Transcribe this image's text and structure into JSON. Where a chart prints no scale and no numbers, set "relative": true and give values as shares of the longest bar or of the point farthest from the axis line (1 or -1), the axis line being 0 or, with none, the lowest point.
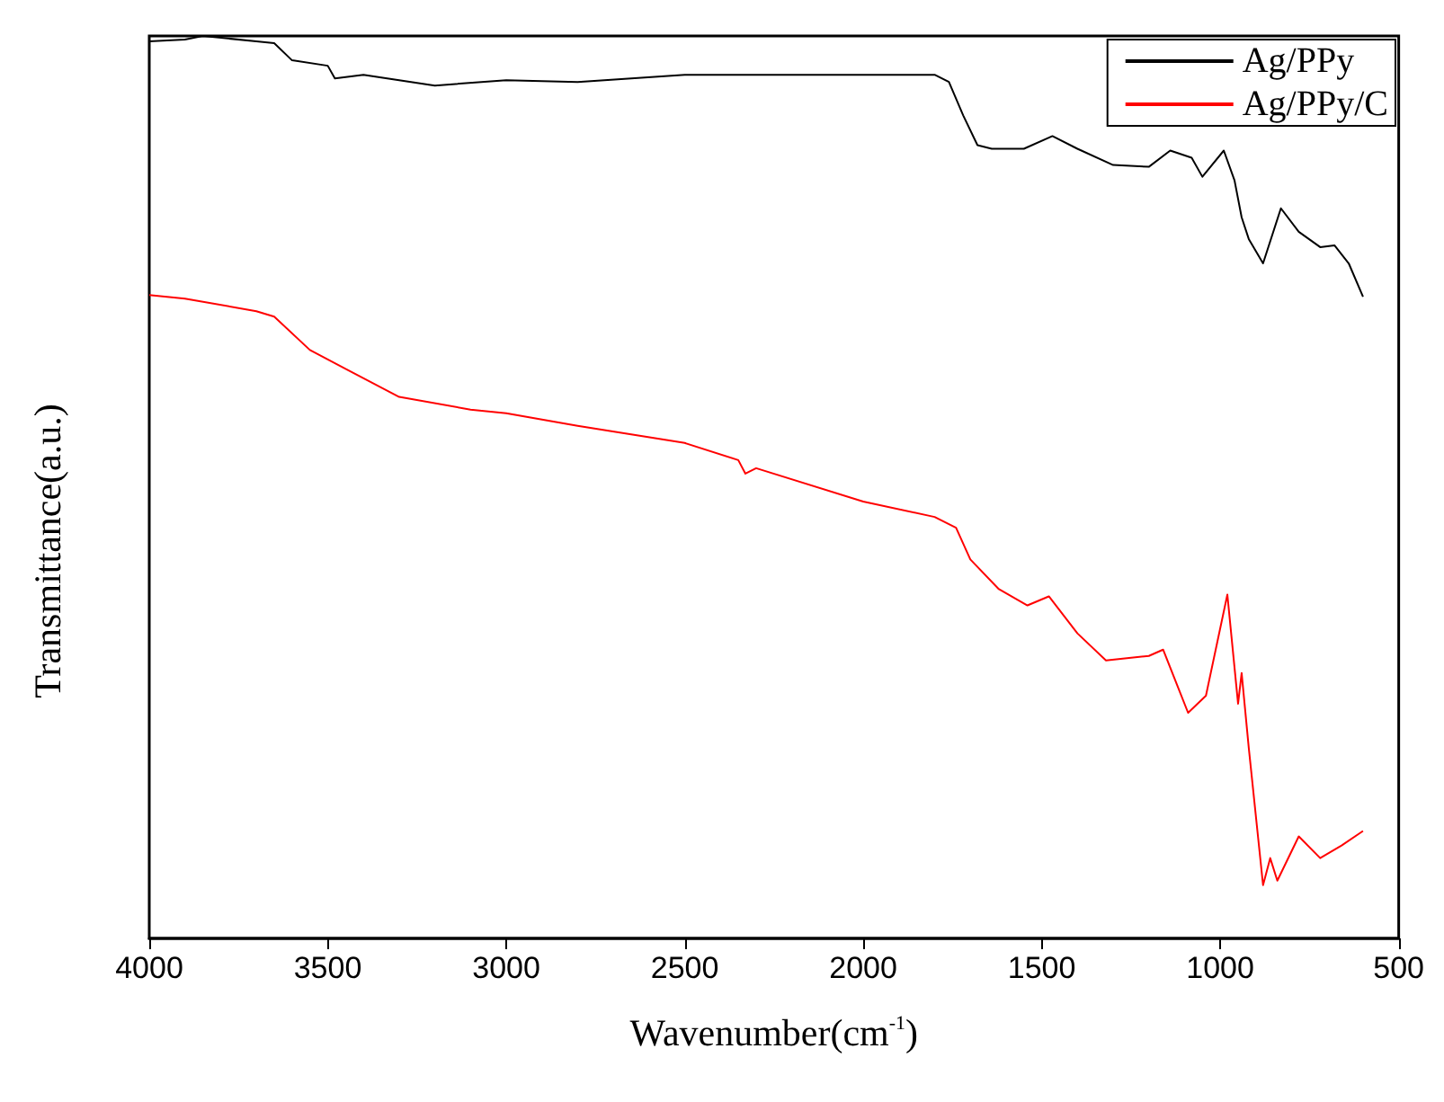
{
  "chart_data": {
    "type": "line",
    "xlabel": "Wavenumber(cm$^{-1}$)",
    "ylabel": "Transmittance(a.u.)",
    "relative": true,
    "xlim": [
      4000,
      500
    ],
    "xticks": [
      4000,
      3500,
      3000,
      2500,
      2000,
      1500,
      1000,
      500
    ],
    "legend": "top right",
    "grid": false,
    "marker": "none",
    "line_style": "solid",
    "series": [
      {
        "name": "Ag/PPy",
        "color": "#000000",
        "x": [
          4000,
          3900,
          3850,
          3700,
          3650,
          3600,
          3500,
          3480,
          3400,
          3200,
          3000,
          2800,
          2500,
          2000,
          1800,
          1760,
          1720,
          1680,
          1640,
          1550,
          1470,
          1400,
          1300,
          1200,
          1140,
          1080,
          1050,
          990,
          960,
          940,
          920,
          880,
          830,
          780,
          720,
          680,
          640,
          600
        ],
        "values": [
          0.994,
          0.996,
          1.0,
          0.994,
          0.992,
          0.973,
          0.967,
          0.953,
          0.957,
          0.945,
          0.951,
          0.949,
          0.957,
          0.957,
          0.957,
          0.949,
          0.912,
          0.879,
          0.875,
          0.875,
          0.889,
          0.875,
          0.857,
          0.855,
          0.873,
          0.865,
          0.844,
          0.873,
          0.84,
          0.799,
          0.775,
          0.748,
          0.809,
          0.783,
          0.766,
          0.768,
          0.748,
          0.711
        ]
      },
      {
        "name": "Ag/PPy/C",
        "color": "#ff0000",
        "x": [
          4000,
          3900,
          3700,
          3650,
          3550,
          3450,
          3300,
          3100,
          3000,
          2800,
          2500,
          2350,
          2330,
          2300,
          2000,
          1800,
          1740,
          1700,
          1620,
          1540,
          1480,
          1400,
          1320,
          1200,
          1160,
          1090,
          1040,
          980,
          950,
          940,
          920,
          880,
          860,
          840,
          780,
          720,
          660,
          600
        ],
        "values": [
          0.713,
          0.709,
          0.695,
          0.689,
          0.652,
          0.631,
          0.6,
          0.586,
          0.582,
          0.568,
          0.549,
          0.53,
          0.515,
          0.521,
          0.484,
          0.467,
          0.455,
          0.42,
          0.387,
          0.369,
          0.379,
          0.338,
          0.308,
          0.313,
          0.32,
          0.25,
          0.269,
          0.381,
          0.26,
          0.294,
          0.211,
          0.059,
          0.089,
          0.064,
          0.113,
          0.089,
          0.103,
          0.119
        ]
      }
    ]
  }
}
